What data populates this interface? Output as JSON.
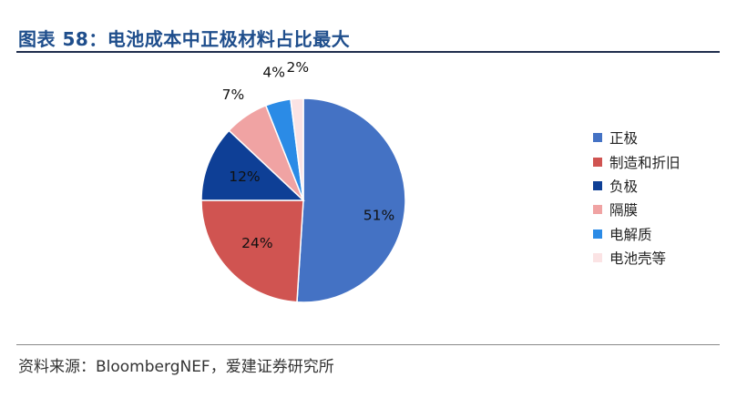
{
  "header": {
    "title": "图表 58：电池成本中正极材料占比最大"
  },
  "footer": {
    "source": "资料来源：BloombergNEF，爱建证券研究所"
  },
  "chart_data": {
    "type": "pie",
    "title": "",
    "legend_position": "right",
    "categories": [
      "正极",
      "制造和折旧",
      "负极",
      "隔膜",
      "电解质",
      "电池壳等"
    ],
    "values": [
      51,
      24,
      12,
      7,
      4,
      2
    ],
    "labels": [
      "51%",
      "24%",
      "12%",
      "7%",
      "4%",
      "2%"
    ],
    "colors": [
      "#4472c4",
      "#d05451",
      "#0e3f96",
      "#f0a3a3",
      "#2b8be6",
      "#fbe3e4"
    ]
  }
}
